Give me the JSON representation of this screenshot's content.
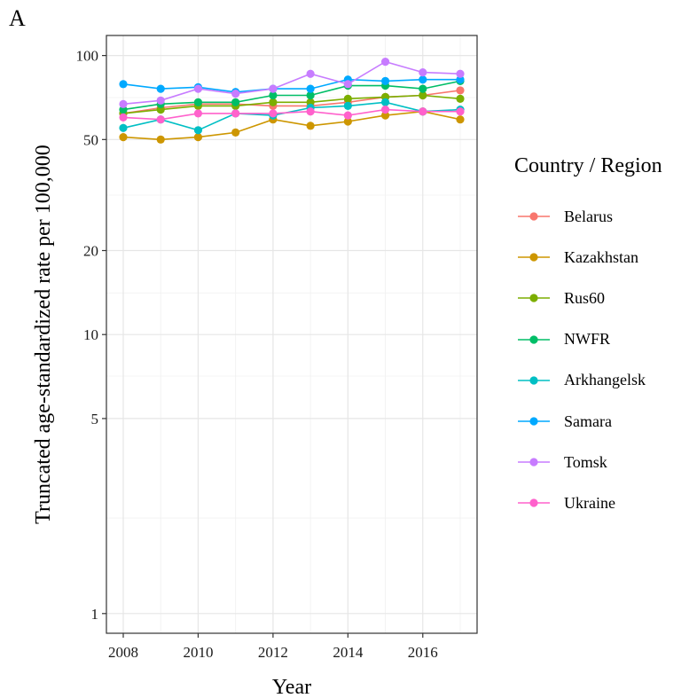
{
  "panel_label": "A",
  "colors": {
    "Belarus": "#F8766D",
    "Kazakhstan": "#CD9600",
    "Rus60": "#7CAE00",
    "NWFR": "#00BE67",
    "Arkhangelsk": "#00BFC4",
    "Samara": "#00A9FF",
    "Tomsk": "#C77CFF",
    "Ukraine": "#FF61CC"
  },
  "chart_data": {
    "type": "line",
    "xlabel": "Year",
    "ylabel": "Truncated age-standardized rate per 100,000",
    "yscale": "log",
    "ylim": [
      0.85,
      118
    ],
    "xlim": [
      2007.55,
      2017.45
    ],
    "xticks": [
      2008,
      2010,
      2012,
      2014,
      2016
    ],
    "yticks": [
      1,
      5,
      10,
      20,
      50,
      100
    ],
    "grid": true,
    "legend_title": "Country / Region",
    "legend_position": "right",
    "x": [
      2008,
      2009,
      2010,
      2011,
      2012,
      2013,
      2014,
      2015,
      2016,
      2017
    ],
    "series": [
      {
        "name": "Belarus",
        "values": [
          62,
          65,
          67,
          67,
          66,
          66,
          68,
          71,
          72,
          75
        ]
      },
      {
        "name": "Kazakhstan",
        "values": [
          51,
          50,
          51,
          53,
          59,
          56,
          58,
          61,
          63,
          59
        ]
      },
      {
        "name": "Rus60",
        "values": [
          62,
          64,
          66,
          66,
          68,
          68,
          70,
          71,
          72,
          70
        ]
      },
      {
        "name": "NWFR",
        "values": [
          64,
          67,
          68,
          68,
          72,
          72,
          78,
          78,
          76,
          81
        ]
      },
      {
        "name": "Arkhangelsk",
        "values": [
          55,
          59,
          54,
          62,
          61,
          65,
          66,
          68,
          63,
          64
        ]
      },
      {
        "name": "Samara",
        "values": [
          79,
          76,
          77,
          74,
          76,
          76,
          82,
          81,
          82,
          82
        ]
      },
      {
        "name": "Tomsk",
        "values": [
          67,
          69,
          76,
          73,
          76,
          86,
          79,
          95,
          87,
          86
        ]
      },
      {
        "name": "Ukraine",
        "values": [
          60,
          59,
          62,
          62,
          62,
          63,
          61,
          64,
          63,
          63
        ]
      }
    ]
  }
}
